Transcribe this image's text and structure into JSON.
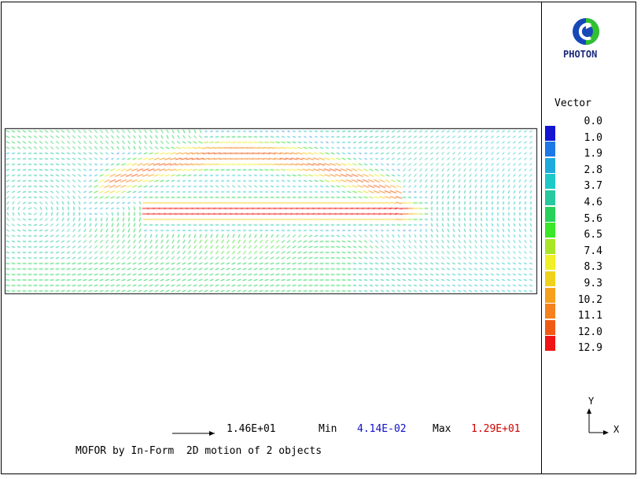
{
  "logo": {
    "icon": "photon-logo-icon",
    "text": "PHOTON",
    "colors": [
      "#1848b8",
      "#30c030"
    ]
  },
  "legend": {
    "title": "Vector",
    "levels": [
      "0.0",
      "1.0",
      "1.9",
      "2.8",
      "3.7",
      "4.6",
      "5.6",
      "6.5",
      "7.4",
      "8.3",
      "9.3",
      "10.2",
      "11.1",
      "12.0",
      "12.9"
    ],
    "colors": [
      "#ffffff",
      "#1414d2",
      "#1e78e6",
      "#1eaadc",
      "#1ec8c8",
      "#28c8a0",
      "#28d25a",
      "#3ce628",
      "#aae628",
      "#f0f028",
      "#f0d21e",
      "#f5a01e",
      "#f5821e",
      "#f05a14",
      "#f01414"
    ]
  },
  "reference": {
    "value": "1.46E+01",
    "min_label": "Min",
    "min_value": "4.14E-02",
    "max_label": "Max",
    "max_value": "1.29E+01"
  },
  "caption": "MOFOR by In-Form  2D motion of 2 objects",
  "axes": {
    "y_label": "Y",
    "x_label": "X"
  }
}
